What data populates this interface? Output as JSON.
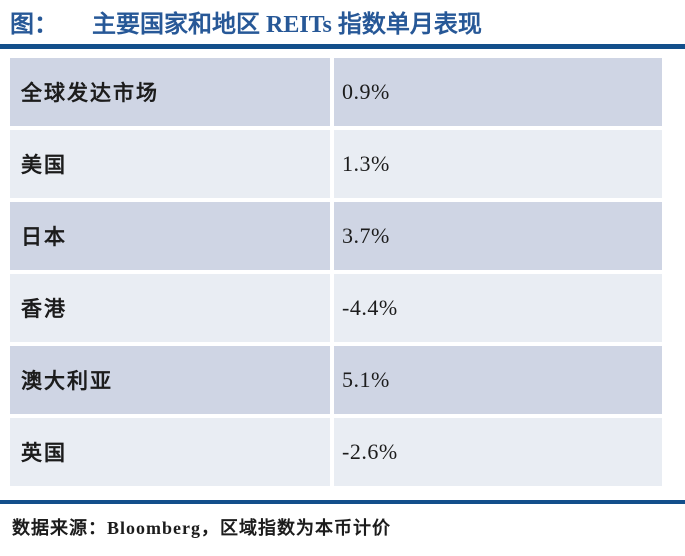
{
  "title": {
    "label": "图：",
    "text": "主要国家和地区 REITs 指数单月表现"
  },
  "table": {
    "rows": [
      {
        "region": "全球发达市场",
        "value": "0.9%"
      },
      {
        "region": "美国",
        "value": "1.3%"
      },
      {
        "region": "日本",
        "value": "3.7%"
      },
      {
        "region": "香港",
        "value": "-4.4%"
      },
      {
        "region": "澳大利亚",
        "value": "5.1%"
      },
      {
        "region": "英国",
        "value": "-2.6%"
      }
    ]
  },
  "footer": {
    "source_note": "数据来源：Bloomberg，区域指数为本币计价"
  },
  "colors": {
    "navy_rule": "#134F8B",
    "title_blue": "#275897",
    "row_shaded": "#CFD5E4",
    "row_plain": "#E9EDF3"
  },
  "chart_data": {
    "type": "table",
    "title": "主要国家和地区 REITs 指数单月表现",
    "categories": [
      "全球发达市场",
      "美国",
      "日本",
      "香港",
      "澳大利亚",
      "英国"
    ],
    "values": [
      0.9,
      1.3,
      3.7,
      -4.4,
      5.1,
      -2.6
    ],
    "unit": "%",
    "source": "Bloomberg，区域指数为本币计价"
  }
}
